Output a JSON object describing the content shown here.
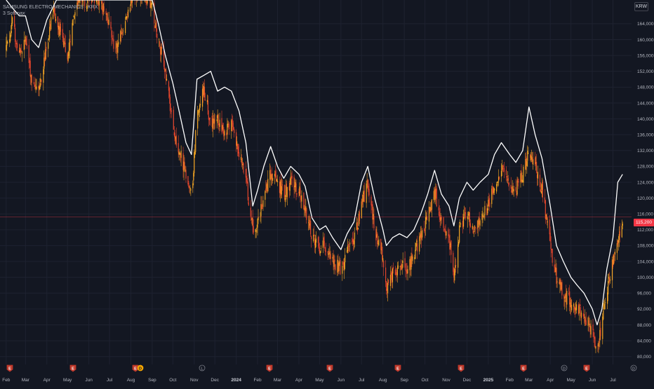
{
  "legend": {
    "symbol_line": "SAMSUNG ELECTRO-MECHANICS · KRX",
    "indicator_line": "3 Softmax"
  },
  "currency_button": "KRW",
  "colors": {
    "background": "#131722",
    "grid": "#1e2230",
    "axis_text": "#b2b5be",
    "candle_up": "#f5a623",
    "candle_down": "#e2452c",
    "overlay_line": "#ffffff",
    "price_line": "#f23645",
    "event_marker": "#c0392b"
  },
  "price_marker": {
    "value": 115200,
    "label": "115,200"
  },
  "chart_data": {
    "type": "candlestick",
    "title": "",
    "ylabel": "",
    "xlabel": "",
    "y_axis_side": "right",
    "ylim": [
      78000,
      170000
    ],
    "grid": true,
    "y_ticks": [
      80000,
      84000,
      88000,
      92000,
      96000,
      100000,
      104000,
      108000,
      112000,
      116000,
      120000,
      124000,
      128000,
      132000,
      136000,
      140000,
      144000,
      148000,
      152000,
      156000,
      160000,
      164000
    ],
    "y_tick_labels": [
      "80,000",
      "84,000",
      "88,000",
      "92,000",
      "96,000",
      "100,000",
      "104,000",
      "108,000",
      "112,000",
      "116,000",
      "120,000",
      "124,000",
      "128,000",
      "132,000",
      "136,000",
      "140,000",
      "144,000",
      "148,000",
      "152,000",
      "156,000",
      "160,000",
      "164,000"
    ],
    "x_tick_labels": [
      "Feb",
      "Mar",
      "Apr",
      "May",
      "Jun",
      "Jul",
      "Aug",
      "Sep",
      "Oct",
      "Nov",
      "Dec",
      "2024",
      "Feb",
      "Mar",
      "Apr",
      "May",
      "Jun",
      "Jul",
      "Aug",
      "Sep",
      "Oct",
      "Nov",
      "Dec",
      "2025",
      "Feb",
      "Mar",
      "Apr",
      "May",
      "Jun",
      "Jul"
    ],
    "x_tick_bold": [
      "2024",
      "2025"
    ],
    "price_path": [
      [
        "2023-02-01",
        158000
      ],
      [
        "2023-02-10",
        164000
      ],
      [
        "2023-02-20",
        156000
      ],
      [
        "2023-03-01",
        160000
      ],
      [
        "2023-03-10",
        150000
      ],
      [
        "2023-03-20",
        147000
      ],
      [
        "2023-04-01",
        158000
      ],
      [
        "2023-04-10",
        167000
      ],
      [
        "2023-04-20",
        162000
      ],
      [
        "2023-05-01",
        156000
      ],
      [
        "2023-05-15",
        170000
      ],
      [
        "2023-06-15",
        170000
      ],
      [
        "2023-07-01",
        164000
      ],
      [
        "2023-07-10",
        157000
      ],
      [
        "2023-07-20",
        162000
      ],
      [
        "2023-08-01",
        170000
      ],
      [
        "2023-08-20",
        172000
      ],
      [
        "2023-09-01",
        168000
      ],
      [
        "2023-09-10",
        160000
      ],
      [
        "2023-09-20",
        152000
      ],
      [
        "2023-10-01",
        138000
      ],
      [
        "2023-10-10",
        132000
      ],
      [
        "2023-10-20",
        126000
      ],
      [
        "2023-10-28",
        120000
      ],
      [
        "2023-11-05",
        141000
      ],
      [
        "2023-11-15",
        148000
      ],
      [
        "2023-11-25",
        138000
      ],
      [
        "2023-12-05",
        140000
      ],
      [
        "2023-12-15",
        137000
      ],
      [
        "2023-12-25",
        138000
      ],
      [
        "2024-01-05",
        132000
      ],
      [
        "2024-01-15",
        125000
      ],
      [
        "2024-01-25",
        112000
      ],
      [
        "2024-02-01",
        114000
      ],
      [
        "2024-02-10",
        120000
      ],
      [
        "2024-02-20",
        126000
      ],
      [
        "2024-03-01",
        124000
      ],
      [
        "2024-03-10",
        121000
      ],
      [
        "2024-03-20",
        124000
      ],
      [
        "2024-04-01",
        122000
      ],
      [
        "2024-04-10",
        117000
      ],
      [
        "2024-04-20",
        110000
      ],
      [
        "2024-05-01",
        107000
      ],
      [
        "2024-05-10",
        108000
      ],
      [
        "2024-05-20",
        104000
      ],
      [
        "2024-06-01",
        102000
      ],
      [
        "2024-06-10",
        106000
      ],
      [
        "2024-06-20",
        109000
      ],
      [
        "2024-07-01",
        118000
      ],
      [
        "2024-07-10",
        124000
      ],
      [
        "2024-07-20",
        112000
      ],
      [
        "2024-08-01",
        104000
      ],
      [
        "2024-08-06",
        96000
      ],
      [
        "2024-08-15",
        101000
      ],
      [
        "2024-08-25",
        103000
      ],
      [
        "2024-09-05",
        102000
      ],
      [
        "2024-09-15",
        106000
      ],
      [
        "2024-09-25",
        110000
      ],
      [
        "2024-10-05",
        115000
      ],
      [
        "2024-10-15",
        122000
      ],
      [
        "2024-10-25",
        114000
      ],
      [
        "2024-11-05",
        110000
      ],
      [
        "2024-11-12",
        100000
      ],
      [
        "2024-11-20",
        112000
      ],
      [
        "2024-12-01",
        116000
      ],
      [
        "2024-12-10",
        112000
      ],
      [
        "2024-12-20",
        114000
      ],
      [
        "2025-01-01",
        118000
      ],
      [
        "2025-01-10",
        124000
      ],
      [
        "2025-01-20",
        127000
      ],
      [
        "2025-02-01",
        124000
      ],
      [
        "2025-02-10",
        122000
      ],
      [
        "2025-02-20",
        126000
      ],
      [
        "2025-03-01",
        133000
      ],
      [
        "2025-03-10",
        128000
      ],
      [
        "2025-03-20",
        122000
      ],
      [
        "2025-04-01",
        108000
      ],
      [
        "2025-04-10",
        100000
      ],
      [
        "2025-04-20",
        96000
      ],
      [
        "2025-05-01",
        94000
      ],
      [
        "2025-05-10",
        92000
      ],
      [
        "2025-05-20",
        90000
      ],
      [
        "2025-06-01",
        87000
      ],
      [
        "2025-06-08",
        82000
      ],
      [
        "2025-06-15",
        88000
      ],
      [
        "2025-06-22",
        96000
      ],
      [
        "2025-07-01",
        104000
      ],
      [
        "2025-07-08",
        110000
      ],
      [
        "2025-07-15",
        115200
      ]
    ],
    "series": [
      {
        "type": "line",
        "points": [
          [
            "2023-02-01",
            170000
          ],
          [
            "2023-02-10",
            168000
          ],
          [
            "2023-02-20",
            166000
          ],
          [
            "2023-03-01",
            166000
          ],
          [
            "2023-03-10",
            160000
          ],
          [
            "2023-03-20",
            158000
          ],
          [
            "2023-04-01",
            165000
          ],
          [
            "2023-04-15",
            170000
          ],
          [
            "2023-09-01",
            170000
          ],
          [
            "2023-09-10",
            164000
          ],
          [
            "2023-09-20",
            156000
          ],
          [
            "2023-10-01",
            149000
          ],
          [
            "2023-10-10",
            142000
          ],
          [
            "2023-10-20",
            134000
          ],
          [
            "2023-10-28",
            131000
          ],
          [
            "2023-11-05",
            150000
          ],
          [
            "2023-11-15",
            151000
          ],
          [
            "2023-11-25",
            152000
          ],
          [
            "2023-12-05",
            147000
          ],
          [
            "2023-12-15",
            148000
          ],
          [
            "2023-12-25",
            147000
          ],
          [
            "2024-01-05",
            142000
          ],
          [
            "2024-01-15",
            134000
          ],
          [
            "2024-01-25",
            118000
          ],
          [
            "2024-02-01",
            122000
          ],
          [
            "2024-02-10",
            128000
          ],
          [
            "2024-02-20",
            133000
          ],
          [
            "2024-03-01",
            128000
          ],
          [
            "2024-03-10",
            125000
          ],
          [
            "2024-03-20",
            128000
          ],
          [
            "2024-04-01",
            126000
          ],
          [
            "2024-04-10",
            123000
          ],
          [
            "2024-04-20",
            115000
          ],
          [
            "2024-05-01",
            112000
          ],
          [
            "2024-05-10",
            113000
          ],
          [
            "2024-05-20",
            110000
          ],
          [
            "2024-06-01",
            107000
          ],
          [
            "2024-06-10",
            111000
          ],
          [
            "2024-06-20",
            114000
          ],
          [
            "2024-07-01",
            124000
          ],
          [
            "2024-07-10",
            128000
          ],
          [
            "2024-07-20",
            120000
          ],
          [
            "2024-08-01",
            112000
          ],
          [
            "2024-08-06",
            108000
          ],
          [
            "2024-08-15",
            110000
          ],
          [
            "2024-08-25",
            111000
          ],
          [
            "2024-09-05",
            110000
          ],
          [
            "2024-09-15",
            112000
          ],
          [
            "2024-09-25",
            116000
          ],
          [
            "2024-10-05",
            121000
          ],
          [
            "2024-10-15",
            127000
          ],
          [
            "2024-10-25",
            121000
          ],
          [
            "2024-11-05",
            118000
          ],
          [
            "2024-11-12",
            113000
          ],
          [
            "2024-11-20",
            120000
          ],
          [
            "2024-12-01",
            124000
          ],
          [
            "2024-12-10",
            122000
          ],
          [
            "2024-12-20",
            124000
          ],
          [
            "2025-01-01",
            126000
          ],
          [
            "2025-01-10",
            131000
          ],
          [
            "2025-01-20",
            134000
          ],
          [
            "2025-02-01",
            131000
          ],
          [
            "2025-02-10",
            129000
          ],
          [
            "2025-02-20",
            132000
          ],
          [
            "2025-03-01",
            143000
          ],
          [
            "2025-03-10",
            136000
          ],
          [
            "2025-03-20",
            130000
          ],
          [
            "2025-04-01",
            118000
          ],
          [
            "2025-04-10",
            108000
          ],
          [
            "2025-04-20",
            104000
          ],
          [
            "2025-05-01",
            100000
          ],
          [
            "2025-05-10",
            98000
          ],
          [
            "2025-05-20",
            96000
          ],
          [
            "2025-06-01",
            92000
          ],
          [
            "2025-06-08",
            88000
          ],
          [
            "2025-06-15",
            92000
          ],
          [
            "2025-06-22",
            102000
          ],
          [
            "2025-07-01",
            110000
          ],
          [
            "2025-07-08",
            124000
          ],
          [
            "2025-07-15",
            126000
          ]
        ]
      }
    ],
    "event_markers": [
      {
        "label": "E",
        "kind": "earnings"
      },
      {
        "label": "E",
        "kind": "earnings"
      },
      {
        "label": "E",
        "kind": "earnings"
      },
      {
        "label": "D",
        "kind": "dividend"
      },
      {
        "label": "L",
        "kind": "split"
      },
      {
        "label": "E",
        "kind": "earnings"
      },
      {
        "label": "E",
        "kind": "earnings"
      },
      {
        "label": "E",
        "kind": "earnings"
      },
      {
        "label": "E",
        "kind": "earnings"
      },
      {
        "label": "E",
        "kind": "earnings"
      },
      {
        "label": "D",
        "kind": "dividend"
      },
      {
        "label": "E",
        "kind": "earnings"
      },
      {
        "label": "D",
        "kind": "dividend"
      }
    ]
  }
}
